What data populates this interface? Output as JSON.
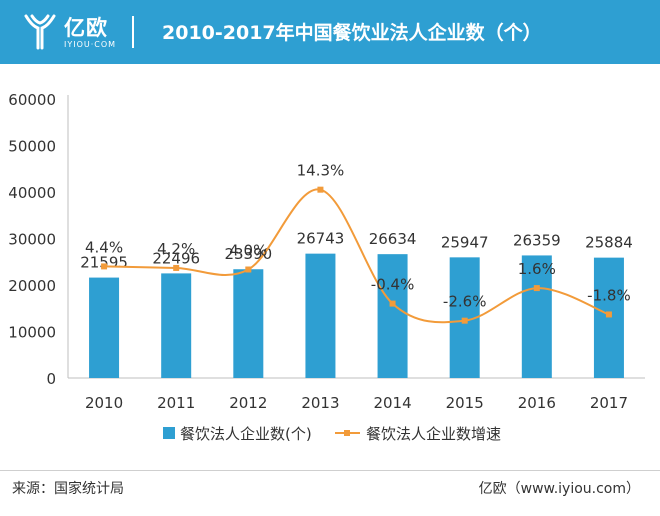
{
  "header": {
    "logo_text": "亿欧",
    "logo_sub": "IYIOU·COM",
    "title": "2010-2017年中国餐饮业法人企业数（个）"
  },
  "footer": {
    "source": "来源：国家统计局",
    "brand": "亿欧（www.iyiou.com）"
  },
  "colors": {
    "header_bg": "#2e9fd2",
    "bar": "#2e9fd2",
    "line": "#f29b3a"
  },
  "chart_data": {
    "type": "bar",
    "categories": [
      "2010",
      "2011",
      "2012",
      "2013",
      "2014",
      "2015",
      "2016",
      "2017"
    ],
    "series": [
      {
        "name": "餐饮法人企业数(个)",
        "type": "bar",
        "values": [
          21595,
          22496,
          23390,
          26743,
          26634,
          25947,
          26359,
          25884
        ],
        "labels": [
          "21595",
          "22496",
          "23390",
          "26743",
          "26634",
          "25947",
          "26359",
          "25884"
        ]
      },
      {
        "name": "餐饮法人企业数增速",
        "type": "line",
        "values": [
          4.4,
          4.2,
          4.0,
          14.3,
          -0.4,
          -2.6,
          1.6,
          -1.8
        ],
        "labels": [
          "4.4%",
          "4.2%",
          "4.0%",
          "14.3%",
          "-0.4%",
          "-2.6%",
          "1.6%",
          "-1.8%"
        ]
      }
    ],
    "y_ticks": [
      "0",
      "10000",
      "20000",
      "30000",
      "40000",
      "50000",
      "60000"
    ],
    "ylim": [
      0,
      60000
    ],
    "grid": false,
    "legend_position": "bottom"
  }
}
